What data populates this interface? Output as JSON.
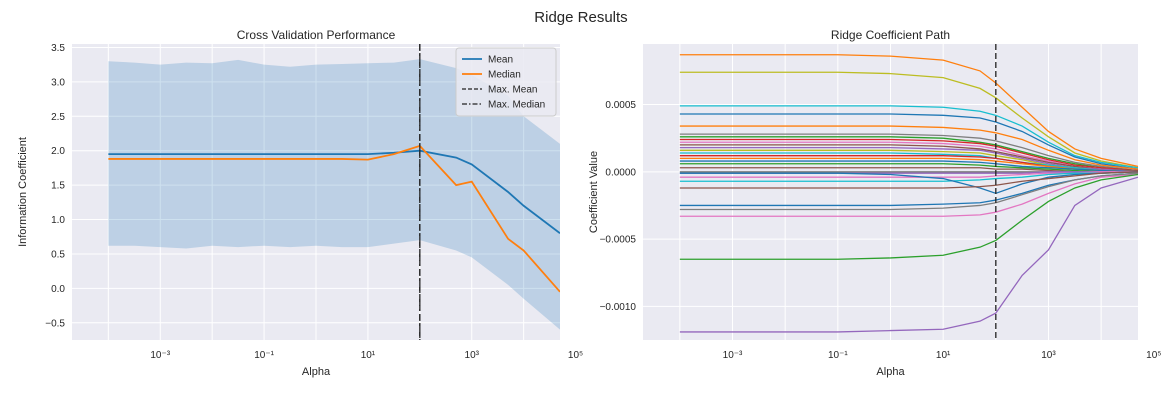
{
  "figure": {
    "suptitle": "Ridge Results"
  },
  "chart_data": [
    {
      "type": "line",
      "title": "Cross Validation Performance",
      "xlabel": "Alpha",
      "ylabel": "Information Coefficient",
      "xscale": "log",
      "xlim_exp": [
        -4.7,
        4.7
      ],
      "ylim": [
        -0.75,
        3.55
      ],
      "xtick_labels": [
        {
          "exp": -3,
          "label": "10⁻³"
        },
        {
          "exp": -1,
          "label": "10⁻¹"
        },
        {
          "exp": 1,
          "label": "10¹"
        },
        {
          "exp": 3,
          "label": "10³"
        },
        {
          "exp": 5,
          "label": "10⁵"
        }
      ],
      "yticks": [
        -0.5,
        0.0,
        0.5,
        1.0,
        1.5,
        2.0,
        2.5,
        3.0,
        3.5
      ],
      "ytick_labels": [
        "−0.5",
        "0.0",
        "0.5",
        "1.0",
        "1.5",
        "2.0",
        "2.5",
        "3.0",
        "3.5"
      ],
      "grid": true,
      "legend_position": "top-right",
      "alpha_exp": [
        -4,
        -3.5,
        -3,
        -2.5,
        -2,
        -1.5,
        -1,
        -0.5,
        0,
        0.5,
        1,
        1.5,
        2,
        2.7,
        3,
        3.7,
        4,
        4.7
      ],
      "series": [
        {
          "name": "Mean",
          "color": "#1f77b4",
          "values": [
            1.95,
            1.95,
            1.95,
            1.95,
            1.95,
            1.95,
            1.95,
            1.95,
            1.95,
            1.95,
            1.95,
            1.97,
            2.0,
            1.9,
            1.8,
            1.4,
            1.2,
            0.8
          ]
        },
        {
          "name": "Median",
          "color": "#ff7f0e",
          "values": [
            1.88,
            1.88,
            1.88,
            1.88,
            1.88,
            1.88,
            1.88,
            1.88,
            1.88,
            1.88,
            1.87,
            1.95,
            2.07,
            1.5,
            1.55,
            0.72,
            0.55,
            -0.05
          ]
        }
      ],
      "band": {
        "color": "#1f77b4",
        "upper": [
          3.3,
          3.28,
          3.25,
          3.28,
          3.27,
          3.32,
          3.25,
          3.22,
          3.25,
          3.26,
          3.27,
          3.28,
          3.33,
          3.2,
          3.1,
          2.8,
          2.5,
          2.1
        ],
        "lower": [
          0.62,
          0.62,
          0.6,
          0.58,
          0.62,
          0.6,
          0.62,
          0.6,
          0.62,
          0.6,
          0.6,
          0.65,
          0.7,
          0.55,
          0.45,
          0.05,
          -0.15,
          -0.6
        ]
      },
      "vlines": [
        {
          "name": "Max. Mean",
          "exp": 2,
          "style": "dashed"
        },
        {
          "name": "Max. Median",
          "exp": 2,
          "style": "dashdot"
        }
      ]
    },
    {
      "type": "line",
      "title": "Ridge Coefficient Path",
      "xlabel": "Alpha",
      "ylabel": "Coefficient Value",
      "xscale": "log",
      "xlim_exp": [
        -4.7,
        4.7
      ],
      "ylim": [
        -0.00125,
        0.00095
      ],
      "xtick_labels": [
        {
          "exp": -3,
          "label": "10⁻³"
        },
        {
          "exp": -1,
          "label": "10⁻¹"
        },
        {
          "exp": 1,
          "label": "10¹"
        },
        {
          "exp": 3,
          "label": "10³"
        },
        {
          "exp": 5,
          "label": "10⁵"
        }
      ],
      "yticks": [
        -0.001,
        -0.0005,
        0.0,
        0.0005
      ],
      "ytick_labels": [
        "−0.0010",
        "−0.0005",
        "0.0000",
        "0.0005"
      ],
      "grid": true,
      "alpha_exp": [
        -4,
        -3,
        -2,
        -1,
        0,
        1,
        1.7,
        2,
        2.5,
        3,
        3.5,
        4,
        4.7
      ],
      "vline_exp": 2,
      "series": [
        {
          "color": "#ff7f0e",
          "values": [
            0.00087,
            0.00087,
            0.00087,
            0.00087,
            0.00086,
            0.00083,
            0.00075,
            0.00066,
            0.00048,
            0.0003,
            0.00017,
            0.0001,
            4e-05
          ]
        },
        {
          "color": "#bcbd22",
          "values": [
            0.00074,
            0.00074,
            0.00074,
            0.00074,
            0.00073,
            0.0007,
            0.00062,
            0.00055,
            0.0004,
            0.00026,
            0.00014,
            8e-05,
            3e-05
          ]
        },
        {
          "color": "#17becf",
          "values": [
            0.00049,
            0.00049,
            0.00049,
            0.00049,
            0.00049,
            0.00048,
            0.00045,
            0.00042,
            0.00034,
            0.00022,
            0.00012,
            7e-05,
            3e-05
          ]
        },
        {
          "color": "#1f77b4",
          "values": [
            0.00043,
            0.00043,
            0.00043,
            0.00043,
            0.00043,
            0.00042,
            0.0004,
            0.00037,
            0.0003,
            0.0002,
            0.00011,
            6e-05,
            2e-05
          ]
        },
        {
          "color": "#ff7f0e",
          "values": [
            0.00034,
            0.00034,
            0.00034,
            0.00034,
            0.00034,
            0.00033,
            0.00031,
            0.00029,
            0.00024,
            0.00016,
            9e-05,
            5e-05,
            2e-05
          ]
        },
        {
          "color": "#7f7f7f",
          "values": [
            0.00028,
            0.00028,
            0.00028,
            0.00028,
            0.00028,
            0.00027,
            0.00025,
            0.00023,
            0.00018,
            0.00012,
            7e-05,
            4e-05,
            1e-05
          ]
        },
        {
          "color": "#2ca02c",
          "values": [
            0.00026,
            0.00026,
            0.00026,
            0.00026,
            0.00026,
            0.00025,
            0.00022,
            0.0002,
            0.00015,
            0.0001,
            6e-05,
            3e-05,
            1e-05
          ]
        },
        {
          "color": "#d62728",
          "values": [
            0.00024,
            0.00024,
            0.00024,
            0.00024,
            0.00024,
            0.00023,
            0.00021,
            0.00019,
            0.00014,
            9e-05,
            5e-05,
            3e-05,
            1e-05
          ]
        },
        {
          "color": "#e377c2",
          "values": [
            0.00022,
            0.00022,
            0.00022,
            0.00022,
            0.00022,
            0.00021,
            0.00019,
            0.00017,
            0.00012,
            8e-05,
            4e-05,
            2e-05,
            1e-05
          ]
        },
        {
          "color": "#8c564b",
          "values": [
            0.0002,
            0.0002,
            0.0002,
            0.0002,
            0.0002,
            0.00019,
            0.00017,
            0.00015,
            0.00011,
            7e-05,
            4e-05,
            2e-05,
            1e-05
          ]
        },
        {
          "color": "#9467bd",
          "values": [
            0.00018,
            0.00018,
            0.00018,
            0.00018,
            0.00018,
            0.00017,
            0.00016,
            0.00014,
            0.0001,
            6e-05,
            3e-05,
            2e-05,
            0.0
          ]
        },
        {
          "color": "#bcbd22",
          "values": [
            0.00016,
            0.00016,
            0.00016,
            0.00016,
            0.00016,
            0.00015,
            0.00014,
            0.00012,
            9e-05,
            5e-05,
            3e-05,
            1e-05,
            0.0
          ]
        },
        {
          "color": "#17becf",
          "values": [
            0.00014,
            0.00014,
            0.00014,
            0.00014,
            0.00014,
            0.00013,
            0.00012,
            0.0001,
            7e-05,
            5e-05,
            3e-05,
            1e-05,
            0.0
          ]
        },
        {
          "color": "#d62728",
          "values": [
            0.00012,
            0.00012,
            0.00012,
            0.00012,
            0.00012,
            0.00012,
            0.00011,
            0.0001,
            7e-05,
            4e-05,
            2e-05,
            1e-05,
            0.0
          ]
        },
        {
          "color": "#ff7f0e",
          "values": [
            0.0001,
            0.0001,
            0.0001,
            0.0001,
            0.0001,
            0.0001,
            9e-05,
            8e-05,
            6e-05,
            4e-05,
            2e-05,
            1e-05,
            0.0
          ]
        },
        {
          "color": "#1f77b4",
          "values": [
            8e-05,
            8e-05,
            8e-05,
            8e-05,
            8e-05,
            8e-05,
            7e-05,
            6e-05,
            4e-05,
            3e-05,
            2e-05,
            1e-05,
            0.0
          ]
        },
        {
          "color": "#2ca02c",
          "values": [
            6e-05,
            6e-05,
            6e-05,
            6e-05,
            6e-05,
            6e-05,
            5e-05,
            4e-05,
            3e-05,
            2e-05,
            1e-05,
            0.0,
            0.0
          ]
        },
        {
          "color": "#8c564b",
          "values": [
            3e-05,
            3e-05,
            3e-05,
            3e-05,
            3e-05,
            3e-05,
            3e-05,
            2e-05,
            2e-05,
            1e-05,
            0.0,
            0.0,
            0.0
          ]
        },
        {
          "color": "#7f7f7f",
          "values": [
            0.0,
            0.0,
            0.0,
            0.0,
            0.0,
            0.0,
            0.0,
            0.0,
            0.0,
            0.0,
            0.0,
            0.0,
            0.0
          ]
        },
        {
          "color": "#9467bd",
          "values": [
            -1e-05,
            -1e-05,
            -1e-05,
            -1e-05,
            -1e-05,
            -1e-05,
            -1e-05,
            -1e-05,
            -1e-05,
            0.0,
            0.0,
            0.0,
            0.0
          ]
        },
        {
          "color": "#e377c2",
          "values": [
            -4e-05,
            -4e-05,
            -4e-05,
            -4e-05,
            -4e-05,
            -4e-05,
            -4e-05,
            -3e-05,
            -2e-05,
            -1e-05,
            -1e-05,
            0.0,
            0.0
          ]
        },
        {
          "color": "#17becf",
          "values": [
            -7e-05,
            -7e-05,
            -7e-05,
            -7e-05,
            -7e-05,
            -7e-05,
            -6e-05,
            -5e-05,
            -4e-05,
            -2e-05,
            -1e-05,
            -1e-05,
            0.0
          ]
        },
        {
          "color": "#1f77b4",
          "values": [
            -1e-05,
            -1e-05,
            -1e-05,
            -1e-05,
            -2e-05,
            -5e-05,
            -0.00012,
            -0.00016,
            -9e-05,
            -4e-05,
            -2e-05,
            -1e-05,
            0.0
          ]
        },
        {
          "color": "#8c564b",
          "values": [
            -0.00012,
            -0.00012,
            -0.00012,
            -0.00012,
            -0.00012,
            -0.00012,
            -0.00011,
            -0.0001,
            -7e-05,
            -5e-05,
            -3e-05,
            -1e-05,
            0.0
          ]
        },
        {
          "color": "#1f77b4",
          "values": [
            -0.00025,
            -0.00025,
            -0.00025,
            -0.00025,
            -0.00025,
            -0.00024,
            -0.00023,
            -0.00021,
            -0.00016,
            -0.0001,
            -6e-05,
            -3e-05,
            -1e-05
          ]
        },
        {
          "color": "#7f7f7f",
          "values": [
            -0.00028,
            -0.00028,
            -0.00028,
            -0.00028,
            -0.00028,
            -0.00027,
            -0.00025,
            -0.00023,
            -0.00017,
            -0.00011,
            -6e-05,
            -3e-05,
            -1e-05
          ]
        },
        {
          "color": "#e377c2",
          "values": [
            -0.00033,
            -0.00033,
            -0.00033,
            -0.00033,
            -0.00033,
            -0.00033,
            -0.00032,
            -0.0003,
            -0.00024,
            -0.00016,
            -9e-05,
            -4e-05,
            -2e-05
          ]
        },
        {
          "color": "#2ca02c",
          "values": [
            -0.00065,
            -0.00065,
            -0.00065,
            -0.00065,
            -0.00064,
            -0.00062,
            -0.00056,
            -0.00051,
            -0.00036,
            -0.00022,
            -0.00012,
            -6e-05,
            -2e-05
          ]
        },
        {
          "color": "#9467bd",
          "values": [
            -0.00119,
            -0.00119,
            -0.00119,
            -0.00119,
            -0.00118,
            -0.00117,
            -0.00111,
            -0.00105,
            -0.00077,
            -0.00058,
            -0.00025,
            -0.00012,
            -4e-05
          ]
        }
      ]
    }
  ]
}
